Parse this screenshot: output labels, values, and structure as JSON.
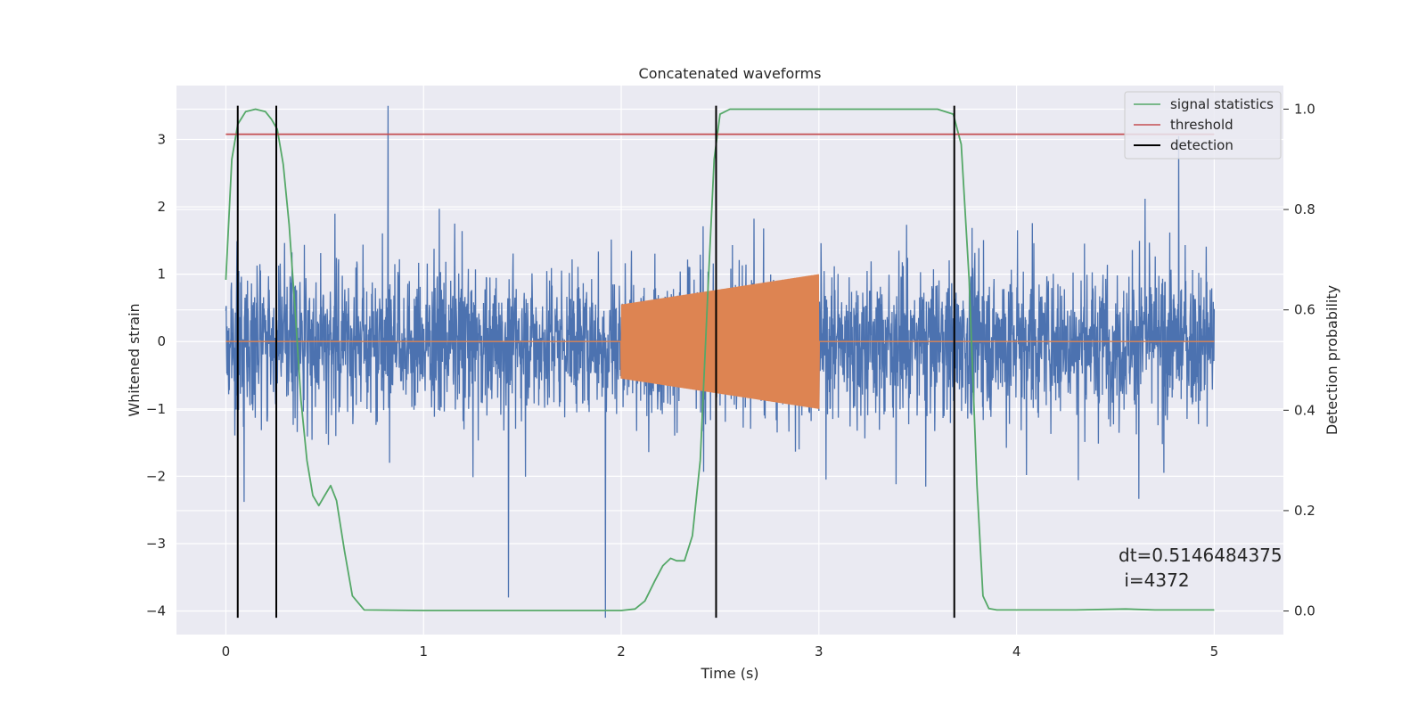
{
  "chart_data": {
    "type": "line",
    "title": "Concatenated waveforms",
    "xlabel": "Time (s)",
    "ylabel": "Whitened strain",
    "y2label": "Detection probability",
    "xlim": [
      -0.25,
      5.35
    ],
    "ylim": [
      -4.35,
      3.8
    ],
    "y2lim": [
      -0.047,
      1.047
    ],
    "xticks": [
      "0",
      "1",
      "2",
      "3",
      "4",
      "5"
    ],
    "yticks": [
      "−4",
      "−3",
      "−2",
      "−1",
      "0",
      "1",
      "2",
      "3"
    ],
    "y2ticks": [
      "0.0",
      "0.2",
      "0.4",
      "0.6",
      "0.8",
      "1.0"
    ],
    "grid": true,
    "legend_position": "top-right",
    "legend": [
      "signal statistics",
      "threshold",
      "detection"
    ],
    "series": [
      {
        "name": "",
        "kind": "noise",
        "axis": "left",
        "color": "#4c72b0",
        "x_range": [
          0,
          5
        ],
        "amplitude": 1.2,
        "peaks": [
          [
            0.82,
            3.5
          ],
          [
            1.92,
            -4.1
          ],
          [
            1.43,
            -3.8
          ],
          [
            4.82,
            3.05
          ]
        ]
      },
      {
        "name": "",
        "kind": "chirp",
        "axis": "left",
        "color": "#dd8452",
        "x_range": [
          0,
          5
        ],
        "chirp_start": 2.0,
        "chirp_end": 3.0,
        "amp_start": 0.55,
        "amp_end": 1.0
      },
      {
        "name": "signal statistics",
        "axis": "right",
        "color": "#55a868",
        "x": [
          0,
          0.03,
          0.06,
          0.1,
          0.15,
          0.2,
          0.23,
          0.26,
          0.29,
          0.32,
          0.35,
          0.38,
          0.41,
          0.44,
          0.47,
          0.5,
          0.53,
          0.56,
          0.6,
          0.64,
          0.7,
          1.0,
          1.5,
          2.0,
          2.07,
          2.12,
          2.17,
          2.21,
          2.25,
          2.28,
          2.32,
          2.36,
          2.4,
          2.44,
          2.47,
          2.5,
          2.55,
          2.8,
          3.6,
          3.68,
          3.72,
          3.76,
          3.8,
          3.83,
          3.86,
          3.9,
          4.3,
          4.55,
          4.7,
          5.0
        ],
        "y": [
          0.66,
          0.9,
          0.97,
          0.995,
          1.0,
          0.995,
          0.98,
          0.96,
          0.89,
          0.77,
          0.6,
          0.42,
          0.3,
          0.23,
          0.21,
          0.23,
          0.25,
          0.22,
          0.12,
          0.03,
          0.002,
          0.001,
          0.001,
          0.001,
          0.004,
          0.02,
          0.06,
          0.09,
          0.105,
          0.1,
          0.1,
          0.15,
          0.3,
          0.65,
          0.9,
          0.99,
          1.0,
          1.0,
          1.0,
          0.99,
          0.93,
          0.66,
          0.25,
          0.03,
          0.005,
          0.002,
          0.002,
          0.004,
          0.002,
          0.002
        ]
      },
      {
        "name": "threshold",
        "axis": "right",
        "color": "#c44e52",
        "x": [
          0,
          5
        ],
        "y": [
          0.95,
          0.95
        ]
      }
    ],
    "detections": {
      "name": "detection",
      "color": "#000000",
      "x": [
        0.06,
        0.255,
        2.48,
        3.685
      ],
      "y_range": [
        -4.1,
        3.5
      ]
    },
    "annotation": {
      "line1": "dt=0.5146484375",
      "line2": " i=4372"
    }
  }
}
